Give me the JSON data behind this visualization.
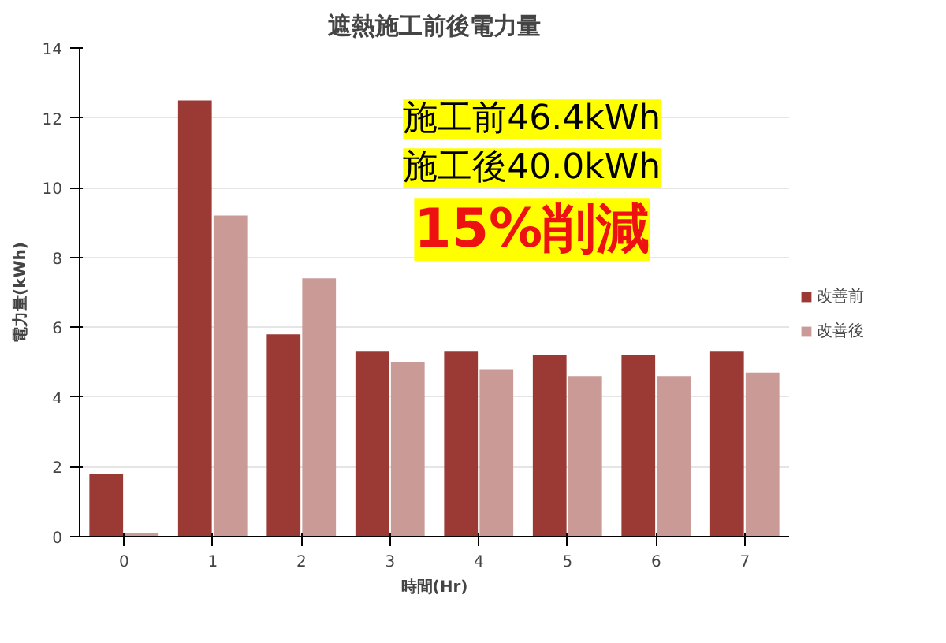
{
  "chart_data": {
    "type": "bar",
    "title": "遮熱施工前後電力量",
    "xlabel": "時間(Hr)",
    "ylabel": "電力量(kWh)",
    "categories": [
      "0",
      "1",
      "2",
      "3",
      "4",
      "5",
      "6",
      "7"
    ],
    "series": [
      {
        "name": "改善前",
        "color": "#9b3a35",
        "values": [
          1.8,
          12.5,
          5.8,
          5.3,
          5.3,
          5.2,
          5.2,
          5.3
        ]
      },
      {
        "name": "改善後",
        "color": "#c99a96",
        "values": [
          0.1,
          9.2,
          7.4,
          5.0,
          4.8,
          4.6,
          4.6,
          4.7
        ]
      }
    ],
    "ylim": [
      0,
      14
    ],
    "yticks": [
      0,
      2,
      4,
      6,
      8,
      10,
      12,
      14
    ],
    "grid": "y",
    "legend": "right",
    "annotations": [
      "施工前46.4kWh",
      "施工後40.0kWh",
      "15%削減"
    ]
  }
}
